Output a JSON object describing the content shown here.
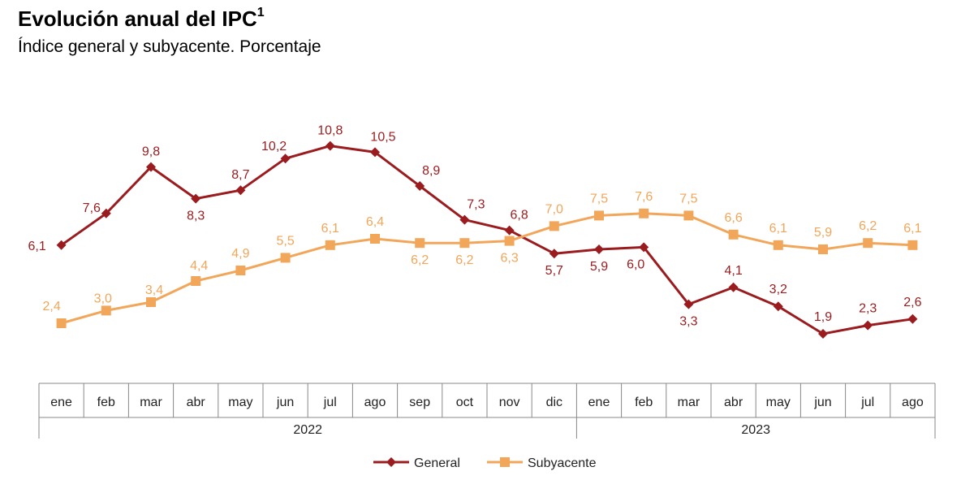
{
  "chart_data": {
    "type": "line",
    "title": "Evolución anual del IPC",
    "title_superscript": "1",
    "subtitle": "Índice general y subyacente. Porcentaje",
    "categories": [
      "ene",
      "feb",
      "mar",
      "abr",
      "may",
      "jun",
      "jul",
      "ago",
      "sep",
      "oct",
      "nov",
      "dic",
      "ene",
      "feb",
      "mar",
      "abr",
      "may",
      "jun",
      "jul",
      "ago"
    ],
    "year_groups": [
      {
        "label": "2022",
        "span": 12
      },
      {
        "label": "2023",
        "span": 8
      }
    ],
    "series": [
      {
        "name": "General",
        "color": "#9b1c1f",
        "marker": "diamond",
        "values": [
          6.1,
          7.6,
          9.8,
          8.3,
          8.7,
          10.2,
          10.8,
          10.5,
          8.9,
          7.3,
          6.8,
          5.7,
          5.9,
          6.0,
          3.3,
          4.1,
          3.2,
          1.9,
          2.3,
          2.6
        ],
        "labels": [
          "6,1",
          "7,6",
          "9,8",
          "8,3",
          "8,7",
          "10,2",
          "10,8",
          "10,5",
          "8,9",
          "7,3",
          "6,8",
          "5,7",
          "5,9",
          "6,0",
          "3,3",
          "4,1",
          "3,2",
          "1,9",
          "2,3",
          "2,6"
        ]
      },
      {
        "name": "Subyacente",
        "color": "#f2a65a",
        "marker": "square",
        "values": [
          2.4,
          3.0,
          3.4,
          4.4,
          4.9,
          5.5,
          6.1,
          6.4,
          6.2,
          6.2,
          6.3,
          7.0,
          7.5,
          7.6,
          7.5,
          6.6,
          6.1,
          5.9,
          6.2,
          6.1
        ],
        "labels": [
          "2,4",
          "3,0",
          "3,4",
          "4,4",
          "4,9",
          "5,5",
          "6,1",
          "6,4",
          "6,2",
          "6,2",
          "6,3",
          "7,0",
          "7,5",
          "7,6",
          "7,5",
          "6,6",
          "6,1",
          "5,9",
          "6,2",
          "6,1"
        ]
      }
    ],
    "ylim": [
      0,
      12
    ],
    "grid": false,
    "legend": "bottom-center"
  }
}
